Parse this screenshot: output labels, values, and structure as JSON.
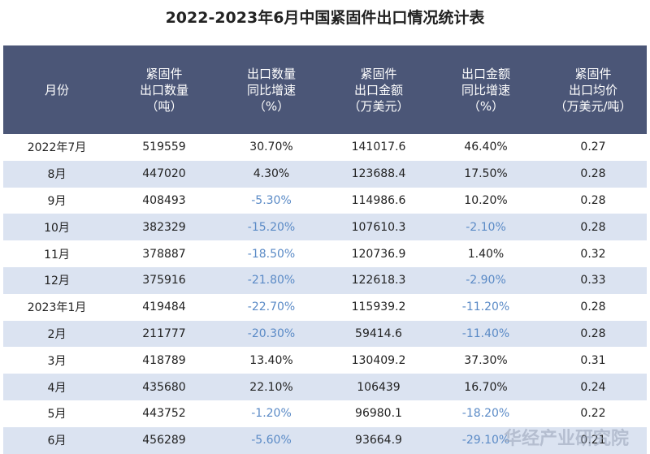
{
  "title": "2022-2023年6月中国紧固件出口情况统计表",
  "table": {
    "headers": [
      [
        "月份"
      ],
      [
        "紧固件",
        "出口数量",
        "（吨）"
      ],
      [
        "出口数量",
        "同比增速",
        "（%）"
      ],
      [
        "紧固件",
        "出口金额",
        "（万美元）"
      ],
      [
        "出口金额",
        "同比增速",
        "（%）"
      ],
      [
        "紧固件",
        "出口均价",
        "（万美元/吨）"
      ]
    ],
    "rows": [
      [
        "2022年7月",
        "519559",
        "30.70%",
        "141017.6",
        "46.40%",
        "0.27"
      ],
      [
        "8月",
        "447020",
        "4.30%",
        "123688.4",
        "17.50%",
        "0.28"
      ],
      [
        "9月",
        "408493",
        "-5.30%",
        "114986.6",
        "10.20%",
        "0.28"
      ],
      [
        "10月",
        "382329",
        "-15.20%",
        "107610.3",
        "-2.10%",
        "0.28"
      ],
      [
        "11月",
        "378887",
        "-18.50%",
        "120736.9",
        "1.40%",
        "0.32"
      ],
      [
        "12月",
        "375916",
        "-21.80%",
        "122618.3",
        "-2.90%",
        "0.33"
      ],
      [
        "2023年1月",
        "419484",
        "-22.70%",
        "115939.2",
        "-11.20%",
        "0.28"
      ],
      [
        "2月",
        "211777",
        "-20.30%",
        "59414.6",
        "-11.40%",
        "0.28"
      ],
      [
        "3月",
        "418789",
        "13.40%",
        "130409.2",
        "37.30%",
        "0.31"
      ],
      [
        "4月",
        "435680",
        "22.10%",
        "106439",
        "16.70%",
        "0.24"
      ],
      [
        "5月",
        "443752",
        "-1.20%",
        "96980.1",
        "-18.20%",
        "0.22"
      ],
      [
        "6月",
        "456289",
        "-5.60%",
        "93664.9",
        "-29.10%",
        "0.21"
      ]
    ]
  },
  "watermark": "华经产业研究院"
}
